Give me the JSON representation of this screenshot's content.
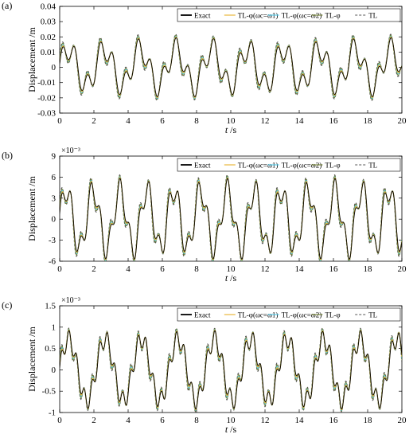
{
  "chart_data": [
    {
      "type": "line",
      "panel_label": "(a)",
      "xlabel_italic": "t",
      "xlabel_unit": " /s",
      "ylabel": "Displacement /m",
      "y_multiplier": "",
      "xlim": [
        0,
        20
      ],
      "ylim": [
        -0.03,
        0.04
      ],
      "xticks": [
        0,
        2,
        4,
        6,
        8,
        10,
        12,
        14,
        16,
        18,
        20
      ],
      "xtick_labels": [
        "0",
        "2",
        "4",
        "6",
        "8",
        "10",
        "12",
        "14",
        "16",
        "18",
        "20"
      ],
      "yticks": [
        -0.03,
        -0.02,
        -0.01,
        0,
        0.01,
        0.02,
        0.03,
        0.04
      ],
      "ytick_labels": [
        "-0.03",
        "-0.02",
        "-0.01",
        "0",
        "0.01",
        "0.02",
        "0.03",
        "0.04"
      ],
      "signal": {
        "a1": 0.0122,
        "w1": 3.0,
        "a2": 0.0072,
        "w2": 8.5,
        "p2": 0.3
      },
      "legend_position": "top-right",
      "legend": [
        {
          "key": "exact",
          "label": "Exact",
          "color": "#000000"
        },
        {
          "key": "tl_phi_wc1",
          "label": "TL-φ(ωc=ω1)",
          "color": "#e8b12a"
        },
        {
          "key": "tl_phi_wc2",
          "label": "TL-φ(ωc=ω2)",
          "color": "#4ec8e8"
        },
        {
          "key": "tl_phi_bold",
          "label": "TL-φ",
          "color": "#6b7a2c"
        },
        {
          "key": "tl",
          "label": "TL",
          "color": "#555555"
        }
      ]
    },
    {
      "type": "line",
      "panel_label": "(b)",
      "xlabel_italic": "t",
      "xlabel_unit": " /s",
      "ylabel": "Displacement /m",
      "y_multiplier": "×10⁻³",
      "xlim": [
        0,
        20
      ],
      "ylim": [
        -6,
        9
      ],
      "xticks": [
        0,
        2,
        4,
        6,
        8,
        10,
        12,
        14,
        16,
        18,
        20
      ],
      "xtick_labels": [
        "0",
        "2",
        "4",
        "6",
        "8",
        "10",
        "12",
        "14",
        "16",
        "18",
        "20"
      ],
      "yticks": [
        -6,
        -3,
        0,
        3,
        6,
        9
      ],
      "ytick_labels": [
        "-6",
        "-3",
        "0",
        "3",
        "6",
        "9"
      ],
      "signal": {
        "a1": 4.2,
        "w1": 4.0,
        "a2": 1.6,
        "w2": 11.0,
        "p2": 0.5
      },
      "legend_position": "top-right",
      "legend": [
        {
          "key": "exact",
          "label": "Exact",
          "color": "#000000"
        },
        {
          "key": "tl_phi_wc1",
          "label": "TL-φ(ωc=ω1)",
          "color": "#e8b12a"
        },
        {
          "key": "tl_phi_wc2",
          "label": "TL-φ(ωc=ω2)",
          "color": "#4ec8e8"
        },
        {
          "key": "tl_phi_bold",
          "label": "TL-φ",
          "color": "#6b7a2c"
        },
        {
          "key": "tl",
          "label": "TL",
          "color": "#555555"
        }
      ]
    },
    {
      "type": "line",
      "panel_label": "(c)",
      "xlabel_italic": "t",
      "xlabel_unit": " /s",
      "ylabel": "Displacement /m",
      "y_multiplier": "×10⁻³",
      "xlim": [
        0,
        20
      ],
      "ylim": [
        -1,
        1.5
      ],
      "xticks": [
        0,
        2,
        4,
        6,
        8,
        10,
        12,
        14,
        16,
        18,
        20
      ],
      "xtick_labels": [
        "0",
        "2",
        "4",
        "6",
        "8",
        "10",
        "12",
        "14",
        "16",
        "18",
        "20"
      ],
      "yticks": [
        -1,
        -0.5,
        0,
        0.5,
        1,
        1.5
      ],
      "ytick_labels": [
        "-1",
        "-0.5",
        "0",
        "0.5",
        "1",
        "1.5"
      ],
      "signal": {
        "a1": 0.72,
        "w1": 2.95,
        "a2": 0.2,
        "w2": 14.0,
        "p2": 0.2
      },
      "legend_position": "top-right",
      "legend": [
        {
          "key": "exact",
          "label": "Exact",
          "color": "#000000"
        },
        {
          "key": "tl_phi_wc1",
          "label": "TL-φ(ωc=ω1)",
          "color": "#e8b12a"
        },
        {
          "key": "tl_phi_wc2",
          "label": "TL-φ(ωc=ω2)",
          "color": "#4ec8e8"
        },
        {
          "key": "tl_phi_bold",
          "label": "TL-φ",
          "color": "#6b7a2c"
        },
        {
          "key": "tl",
          "label": "TL",
          "color": "#555555"
        }
      ]
    }
  ]
}
